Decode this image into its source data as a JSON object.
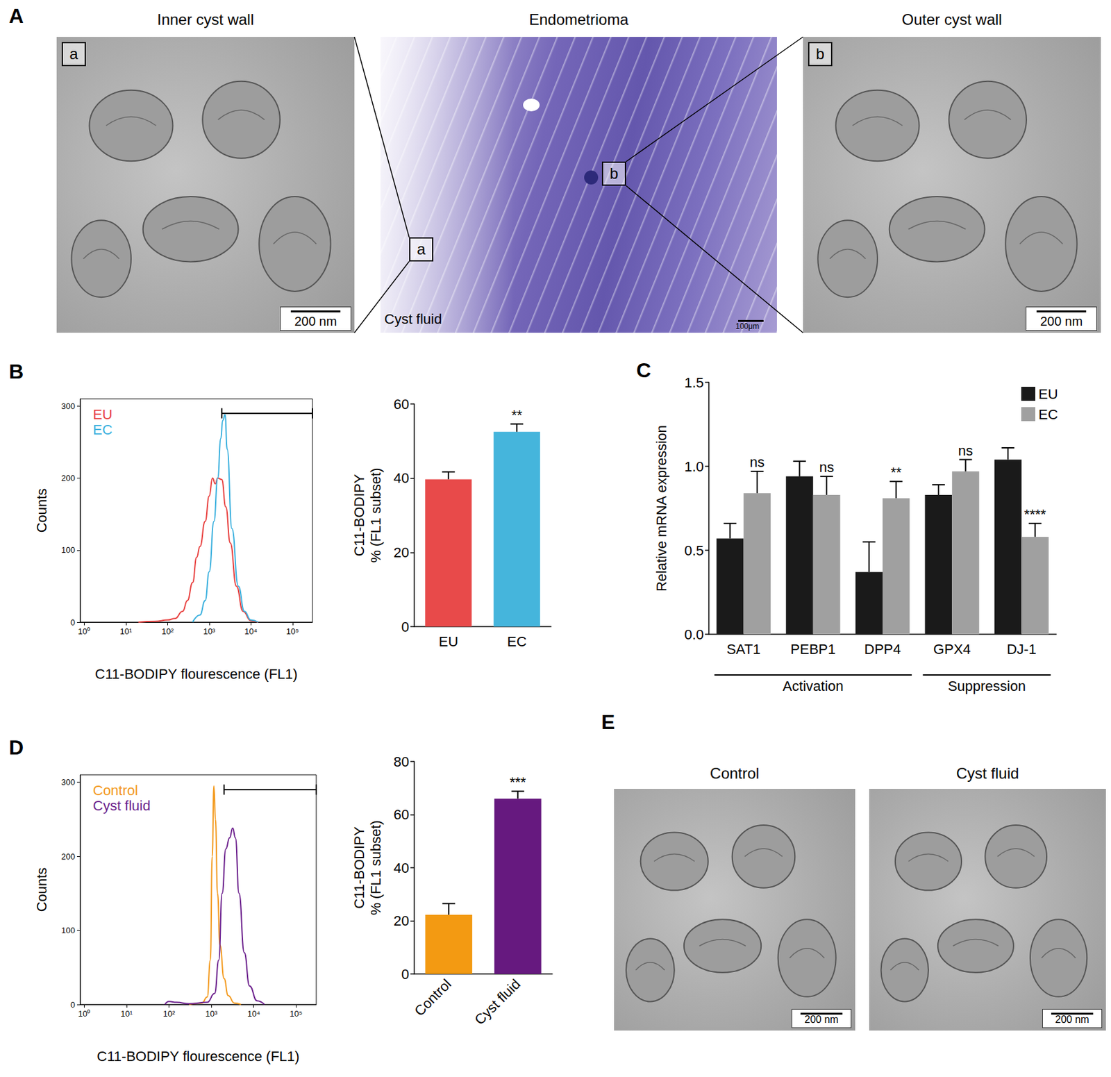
{
  "chart_data": [
    {
      "type": "line",
      "letter": "B",
      "x_label": "C11-BODIPY flourescence (FL1)",
      "y_label": "Counts",
      "log": "x",
      "xlim": [
        0.8,
        300000
      ],
      "xticks": [
        {
          "value": 1,
          "label": "10⁰"
        },
        {
          "value": 10,
          "label": "10¹"
        },
        {
          "value": 100,
          "label": "10²"
        },
        {
          "value": 1000,
          "label": "10³"
        },
        {
          "value": 10000,
          "label": "10⁴"
        },
        {
          "value": 100000,
          "label": "10⁵"
        }
      ],
      "ylim": [
        0,
        310
      ],
      "yticks": [
        0,
        100,
        200,
        300
      ],
      "grid": false,
      "legend": "top-left",
      "gate": {
        "x": [
          2000,
          300000
        ],
        "y": 290
      },
      "series": [
        {
          "name": "EU",
          "color": "#e8403f",
          "x": [
            20,
            50,
            100,
            150,
            230,
            300,
            400,
            500,
            600,
            800,
            1000,
            1200,
            1400,
            1600,
            2000,
            2500,
            3200,
            4500,
            6500,
            10000,
            15000
          ],
          "values": [
            0,
            1,
            3,
            5,
            15,
            30,
            55,
            90,
            105,
            140,
            175,
            200,
            192,
            200,
            198,
            160,
            110,
            50,
            15,
            2,
            0
          ]
        },
        {
          "name": "EC",
          "color": "#3ab0de",
          "x": [
            400,
            600,
            800,
            1000,
            1300,
            1600,
            1900,
            2100,
            2400,
            2700,
            3500,
            5000,
            7000,
            10000,
            15000
          ],
          "values": [
            0,
            10,
            30,
            70,
            140,
            200,
            255,
            280,
            288,
            240,
            130,
            50,
            15,
            3,
            0
          ]
        }
      ]
    },
    {
      "type": "bar",
      "y_label": "C11-BODIPY\n% (FL1 subset)",
      "categories": [
        "EU",
        "EC"
      ],
      "values": [
        39.7,
        52.5
      ],
      "errors": [
        2.0,
        2.1
      ],
      "significance": [
        null,
        "**"
      ],
      "colors": [
        "#e84a4a",
        "#45b5dc"
      ],
      "ylim": [
        0,
        60
      ],
      "yticks": [
        0,
        20,
        40,
        60
      ],
      "grid": false
    },
    {
      "type": "bar",
      "letter": "C",
      "y_label": "Relative mRNA expression",
      "categories": [
        "SAT1",
        "PEBP1",
        "DPP4",
        "GPX4",
        "DJ-1"
      ],
      "series": [
        {
          "name": "EU",
          "color": "#1a1a1a",
          "values": [
            0.57,
            0.94,
            0.37,
            0.83,
            1.04
          ],
          "errors": [
            0.09,
            0.09,
            0.18,
            0.06,
            0.07
          ]
        },
        {
          "name": "EC",
          "color": "#a0a0a0",
          "values": [
            0.84,
            0.83,
            0.81,
            0.97,
            0.58
          ],
          "errors": [
            0.13,
            0.11,
            0.1,
            0.07,
            0.08
          ],
          "significance": [
            "ns",
            "ns",
            "**",
            "ns",
            "****"
          ]
        }
      ],
      "groups": [
        {
          "label": "Activation",
          "categories": [
            "SAT1",
            "PEBP1",
            "DPP4"
          ]
        },
        {
          "label": "Suppression",
          "categories": [
            "GPX4",
            "DJ-1"
          ]
        }
      ],
      "ylim": [
        0,
        1.5
      ],
      "yticks": [
        {
          "value": 0,
          "label": "0.0"
        },
        {
          "value": 0.5,
          "label": "0.5"
        },
        {
          "value": 1,
          "label": "1.0"
        },
        {
          "value": 1.5,
          "label": "1.5"
        }
      ],
      "grid": false,
      "legend": "top-right"
    },
    {
      "type": "line",
      "letter": "D",
      "x_label": "C11-BODIPY flourescence (FL1)",
      "y_label": "Counts",
      "log": "x",
      "xlim": [
        0.8,
        300000
      ],
      "xticks": [
        {
          "value": 1,
          "label": "10⁰"
        },
        {
          "value": 10,
          "label": "10¹"
        },
        {
          "value": 100,
          "label": "10²"
        },
        {
          "value": 1000,
          "label": "10³"
        },
        {
          "value": 10000,
          "label": "10⁴"
        },
        {
          "value": 100000,
          "label": "10⁵"
        }
      ],
      "ylim": [
        0,
        310
      ],
      "yticks": [
        0,
        100,
        200,
        300
      ],
      "grid": false,
      "legend": "top-left",
      "gate": {
        "x": [
          2000,
          300000
        ],
        "y": 290
      },
      "series": [
        {
          "name": "Control",
          "color": "#f39a1e",
          "x": [
            300,
            600,
            800,
            950,
            1050,
            1150,
            1250,
            1400,
            1600,
            2000,
            2500,
            3500,
            5000
          ],
          "values": [
            0,
            2,
            10,
            60,
            200,
            295,
            250,
            150,
            80,
            35,
            12,
            2,
            0
          ]
        },
        {
          "name": "Cyst fluid",
          "color": "#6b1f8c",
          "x": [
            80,
            100,
            150,
            300,
            800,
            1200,
            1500,
            1800,
            2200,
            2700,
            3200,
            3700,
            4500,
            6000,
            8000,
            12000,
            18000
          ],
          "values": [
            0,
            4,
            3,
            1,
            3,
            15,
            60,
            150,
            210,
            225,
            238,
            225,
            150,
            70,
            25,
            5,
            0
          ]
        }
      ]
    },
    {
      "type": "bar",
      "y_label": "C11-BODIPY\n% (FL1 subset)",
      "categories": [
        "Control",
        "Cyst fluid"
      ],
      "values": [
        22.3,
        66.0
      ],
      "errors": [
        4.2,
        2.8
      ],
      "significance": [
        null,
        "***"
      ],
      "colors": [
        "#f39a12",
        "#66197f"
      ],
      "ylim": [
        0,
        80
      ],
      "yticks": [
        0,
        20,
        40,
        60,
        80
      ],
      "grid": false
    }
  ],
  "figure_A": {
    "letter": "A",
    "panels": [
      {
        "title": "Inner cyst wall",
        "tag": "a",
        "scale_bar": "200 nm"
      },
      {
        "title": "Endometrioma",
        "tags": [
          "a",
          "b"
        ],
        "caption": "Cyst fluid",
        "scale_bar": "100μm"
      },
      {
        "title": "Outer cyst wall",
        "tag": "b",
        "scale_bar": "200 nm"
      }
    ]
  },
  "figure_E": {
    "letter": "E",
    "panels": [
      {
        "title": "Control",
        "scale_bar": "200 nm"
      },
      {
        "title": "Cyst fluid",
        "scale_bar": "200 nm"
      }
    ]
  }
}
